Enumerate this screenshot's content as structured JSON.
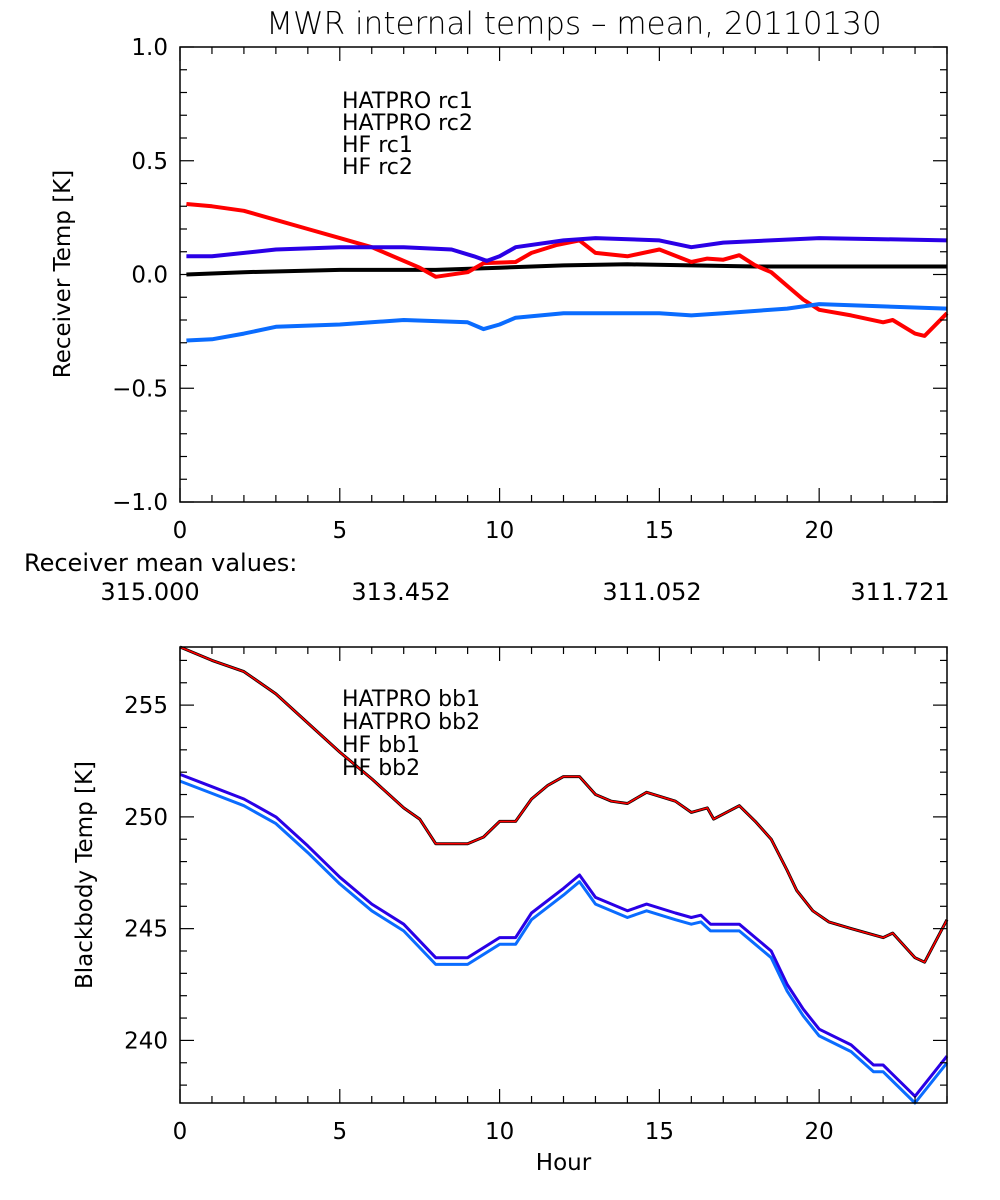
{
  "title": "MWR internal temps – mean, 20110130",
  "mean_values": {
    "label": "Receiver mean values:",
    "values": [
      {
        "text": "315.000",
        "color": "#000000"
      },
      {
        "text": "313.452",
        "color": "#ff0000"
      },
      {
        "text": "311.052",
        "color": "#2a00e6"
      },
      {
        "text": "311.721",
        "color": "#0a6cff"
      }
    ]
  },
  "chart_data": [
    {
      "type": "line",
      "title": "MWR internal temps – mean, 20110130",
      "xlabel": "",
      "ylabel": "Receiver Temp [K]",
      "xlim": [
        0,
        24
      ],
      "ylim": [
        -1.0,
        1.0
      ],
      "xticks": [
        0,
        5,
        10,
        15,
        20
      ],
      "xtick_labels": [
        "0",
        "5",
        "10",
        "15",
        "20"
      ],
      "xminor_step": 1,
      "yticks": [
        -1.0,
        -0.5,
        0.0,
        0.5,
        1.0
      ],
      "ytick_labels": [
        "−1.0",
        "−0.5",
        "0.0",
        "0.5",
        "1.0"
      ],
      "yminor_step": 0.1,
      "grid": false,
      "legend_placement": "top-left-inside",
      "series": [
        {
          "name": "HATPRO rc1",
          "color": "#000000",
          "x": [
            0.2,
            2,
            5,
            8,
            10,
            12,
            14,
            16,
            18,
            20,
            22,
            24
          ],
          "y": [
            0.0,
            0.01,
            0.02,
            0.02,
            0.03,
            0.04,
            0.045,
            0.04,
            0.035,
            0.035,
            0.035,
            0.035
          ]
        },
        {
          "name": "HATPRO rc2",
          "color": "#ff0000",
          "x": [
            0.2,
            1,
            2,
            3,
            4,
            5,
            6,
            6.5,
            7.5,
            8,
            9,
            9.5,
            10.5,
            11,
            11.8,
            12.5,
            13,
            14,
            15,
            16,
            16.5,
            17,
            17.5,
            18,
            18.5,
            19,
            19.5,
            20,
            21,
            22,
            22.3,
            23,
            23.3,
            24
          ],
          "y": [
            0.31,
            0.3,
            0.28,
            0.24,
            0.2,
            0.16,
            0.12,
            0.09,
            0.03,
            -0.01,
            0.01,
            0.05,
            0.055,
            0.095,
            0.13,
            0.15,
            0.095,
            0.08,
            0.11,
            0.055,
            0.07,
            0.065,
            0.085,
            0.04,
            0.01,
            -0.05,
            -0.11,
            -0.155,
            -0.18,
            -0.21,
            -0.2,
            -0.26,
            -0.27,
            -0.17
          ]
        },
        {
          "name": "HF rc1",
          "color": "#2a00e6",
          "x": [
            0.2,
            1,
            3,
            5,
            7,
            8.5,
            9.2,
            9.6,
            10,
            10.5,
            12,
            13,
            15,
            16,
            17,
            20,
            22,
            24
          ],
          "y": [
            0.08,
            0.08,
            0.11,
            0.12,
            0.12,
            0.11,
            0.08,
            0.06,
            0.08,
            0.12,
            0.15,
            0.16,
            0.15,
            0.12,
            0.14,
            0.16,
            0.155,
            0.15
          ]
        },
        {
          "name": "HF rc2",
          "color": "#0a6cff",
          "x": [
            0.2,
            1,
            2,
            3,
            5,
            7,
            9,
            9.5,
            10,
            10.5,
            12,
            15,
            16,
            17,
            19,
            20,
            22,
            24
          ],
          "y": [
            -0.29,
            -0.285,
            -0.26,
            -0.23,
            -0.22,
            -0.2,
            -0.21,
            -0.24,
            -0.22,
            -0.19,
            -0.17,
            -0.17,
            -0.18,
            -0.17,
            -0.15,
            -0.13,
            -0.14,
            -0.15
          ]
        }
      ]
    },
    {
      "type": "line",
      "title": "",
      "xlabel": "Hour",
      "ylabel": "Blackbody Temp [K]",
      "xlim": [
        0,
        24
      ],
      "ylim": [
        237.2,
        257.6
      ],
      "xticks": [
        0,
        5,
        10,
        15,
        20
      ],
      "xtick_labels": [
        "0",
        "5",
        "10",
        "15",
        "20"
      ],
      "xminor_step": 1,
      "yticks": [
        240,
        245,
        250,
        255
      ],
      "ytick_labels": [
        "240",
        "245",
        "250",
        "255"
      ],
      "yminor_step": 1,
      "grid": false,
      "legend_placement": "top-left-inside",
      "series": [
        {
          "name": "HATPRO bb1",
          "color": "#000000",
          "x": [
            0,
            1,
            2,
            3,
            4,
            5,
            6,
            7,
            7.5,
            8,
            9,
            9.5,
            10,
            10.5,
            11,
            11.5,
            12,
            12.5,
            13,
            13.5,
            14,
            14.6,
            15.5,
            16,
            16.5,
            16.7,
            17.5,
            18,
            18.5,
            19,
            19.3,
            19.8,
            20.3,
            21,
            22,
            22.3,
            23,
            23.3,
            24
          ],
          "y": [
            257.6,
            257.0,
            256.5,
            255.5,
            254.2,
            252.9,
            251.7,
            250.4,
            249.9,
            248.8,
            248.8,
            249.1,
            249.8,
            249.8,
            250.8,
            251.4,
            251.8,
            251.8,
            251.0,
            250.7,
            250.6,
            251.1,
            250.7,
            250.2,
            250.4,
            249.9,
            250.5,
            249.8,
            249.0,
            247.6,
            246.7,
            245.8,
            245.3,
            245.0,
            244.6,
            244.8,
            243.7,
            243.5,
            245.4
          ]
        },
        {
          "name": "HATPRO bb2",
          "color": "#ff0000",
          "x": [
            0,
            1,
            2,
            3,
            4,
            5,
            6,
            7,
            7.5,
            8,
            9,
            9.5,
            10,
            10.5,
            11,
            11.5,
            12,
            12.5,
            13,
            13.5,
            14,
            14.6,
            15.5,
            16,
            16.5,
            16.7,
            17.5,
            18,
            18.5,
            19,
            19.3,
            19.8,
            20.3,
            21,
            22,
            22.3,
            23,
            23.3,
            24
          ],
          "y": [
            257.6,
            257.0,
            256.5,
            255.5,
            254.2,
            252.9,
            251.7,
            250.4,
            249.9,
            248.8,
            248.8,
            249.1,
            249.8,
            249.8,
            250.8,
            251.4,
            251.8,
            251.8,
            251.0,
            250.7,
            250.6,
            251.1,
            250.7,
            250.2,
            250.4,
            249.9,
            250.5,
            249.8,
            249.0,
            247.6,
            246.7,
            245.8,
            245.3,
            245.0,
            244.6,
            244.8,
            243.7,
            243.5,
            245.4
          ]
        },
        {
          "name": "HF bb1",
          "color": "#2a00e6",
          "x": [
            0,
            1,
            2,
            3,
            4,
            5,
            6,
            7,
            8,
            9,
            10,
            10.5,
            11,
            12,
            12.5,
            13,
            14,
            14.6,
            15.5,
            16,
            16.3,
            16.6,
            17.5,
            18,
            18.5,
            19,
            19.5,
            20,
            21,
            21.7,
            22,
            23,
            24
          ],
          "y": [
            251.9,
            251.35,
            250.8,
            250.0,
            248.7,
            247.3,
            246.1,
            245.2,
            243.7,
            243.7,
            244.6,
            244.6,
            245.7,
            246.8,
            247.4,
            246.4,
            245.8,
            246.1,
            245.7,
            245.5,
            245.6,
            245.2,
            245.2,
            244.6,
            244.0,
            242.5,
            241.4,
            240.5,
            239.8,
            238.9,
            238.9,
            237.5,
            239.3
          ]
        },
        {
          "name": "HF bb2",
          "color": "#0a6cff",
          "x": [
            0,
            1,
            2,
            3,
            4,
            5,
            6,
            7,
            8,
            9,
            10,
            10.5,
            11,
            12,
            12.5,
            13,
            14,
            14.6,
            15.5,
            16,
            16.3,
            16.6,
            17.5,
            18,
            18.5,
            19,
            19.5,
            20,
            21,
            21.7,
            22,
            23,
            24
          ],
          "y": [
            251.6,
            251.05,
            250.5,
            249.7,
            248.4,
            247.0,
            245.8,
            244.9,
            243.4,
            243.4,
            244.3,
            244.3,
            245.4,
            246.5,
            247.1,
            246.1,
            245.5,
            245.8,
            245.4,
            245.2,
            245.3,
            244.9,
            244.9,
            244.3,
            243.7,
            242.2,
            241.1,
            240.2,
            239.5,
            238.6,
            238.6,
            237.2,
            239.0
          ]
        }
      ]
    }
  ]
}
